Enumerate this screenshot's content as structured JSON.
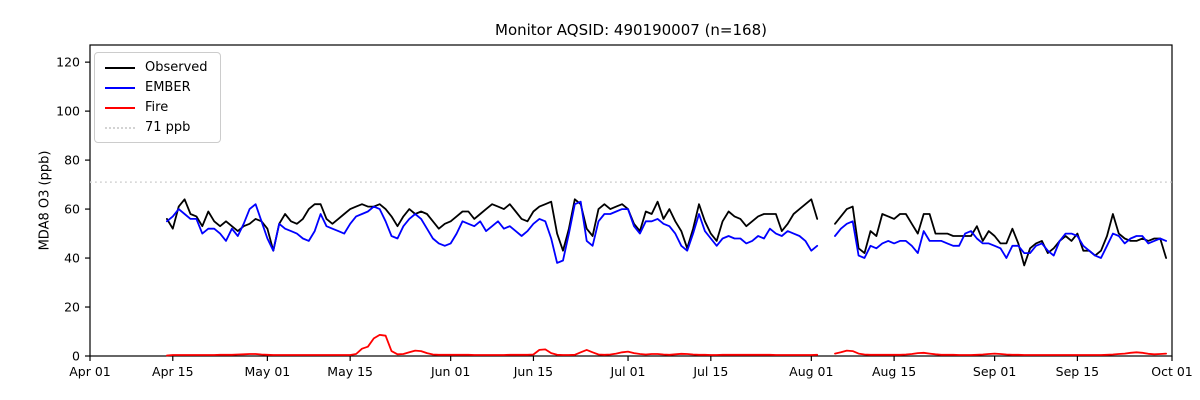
{
  "chart_data": {
    "type": "line",
    "title": "Monitor AQSID: 490190007 (n=168)",
    "xlabel": "",
    "ylabel": "MDA8 O3 (ppb)",
    "n_points": 168,
    "grid": false,
    "legend_position": "upper left",
    "x_axis": {
      "start_label": "Apr 01",
      "end_label": "Oct 01",
      "range_days": 183,
      "ticks": [
        {
          "label": "Apr 01",
          "day": 0
        },
        {
          "label": "Apr 15",
          "day": 14
        },
        {
          "label": "May 01",
          "day": 30
        },
        {
          "label": "May 15",
          "day": 44
        },
        {
          "label": "Jun 01",
          "day": 61
        },
        {
          "label": "Jun 15",
          "day": 75
        },
        {
          "label": "Jul 01",
          "day": 91
        },
        {
          "label": "Jul 15",
          "day": 105
        },
        {
          "label": "Aug 01",
          "day": 122
        },
        {
          "label": "Aug 15",
          "day": 136
        },
        {
          "label": "Sep 01",
          "day": 153
        },
        {
          "label": "Sep 15",
          "day": 167
        },
        {
          "label": "Oct 01",
          "day": 183
        }
      ]
    },
    "y_axis": {
      "min": 0,
      "max": 127,
      "ticks": [
        0,
        20,
        40,
        60,
        80,
        100,
        120
      ]
    },
    "threshold": {
      "label": "71 ppb",
      "value": 71,
      "color": "#d3d3d3",
      "style": "dotted"
    },
    "data_start_date": "Apr 14",
    "data_end_date": "Sep 30",
    "x_start_day": 13,
    "missing_dates": [
      "Aug 03",
      "Aug 04"
    ],
    "series": [
      {
        "name": "Observed",
        "color": "#000000",
        "values": [
          56,
          52,
          61,
          64,
          58,
          57,
          53,
          59,
          55,
          53,
          55,
          53,
          51,
          53,
          54,
          56,
          55,
          52,
          43,
          54,
          58,
          55,
          54,
          56,
          60,
          62,
          62,
          56,
          54,
          56,
          58,
          60,
          61,
          62,
          61,
          61,
          62,
          60,
          57,
          53,
          57,
          60,
          58,
          59,
          58,
          55,
          52,
          54,
          55,
          57,
          59,
          59,
          56,
          58,
          60,
          62,
          61,
          60,
          62,
          59,
          56,
          55,
          59,
          61,
          62,
          63,
          50,
          43,
          52,
          64,
          62,
          52,
          49,
          60,
          62,
          60,
          61,
          62,
          60,
          54,
          51,
          59,
          58,
          63,
          56,
          60,
          55,
          51,
          44,
          52,
          62,
          55,
          50,
          47,
          55,
          59,
          57,
          56,
          53,
          55,
          57,
          58,
          58,
          58,
          51,
          54,
          58,
          60,
          62,
          64,
          56,
          null,
          null,
          54,
          57,
          60,
          61,
          44,
          42,
          51,
          49,
          58,
          57,
          56,
          58,
          58,
          54,
          50,
          58,
          58,
          50,
          50,
          50,
          49,
          49,
          49,
          49,
          53,
          47,
          51,
          49,
          46,
          46,
          52,
          46,
          37,
          44,
          46,
          47,
          42,
          44,
          47,
          49,
          47,
          50,
          43,
          43,
          41,
          43,
          49,
          58,
          50,
          48,
          47,
          47,
          48,
          47,
          48,
          48,
          40
        ]
      },
      {
        "name": "EMBER",
        "color": "#0000ff",
        "values": [
          55,
          57,
          60,
          58,
          56,
          56,
          50,
          52,
          52,
          50,
          47,
          52,
          49,
          54,
          60,
          62,
          55,
          48,
          43,
          54,
          52,
          51,
          50,
          48,
          47,
          51,
          58,
          53,
          52,
          51,
          50,
          54,
          57,
          58,
          59,
          61,
          60,
          55,
          49,
          48,
          53,
          56,
          58,
          56,
          52,
          48,
          46,
          45,
          46,
          50,
          55,
          54,
          53,
          55,
          51,
          53,
          55,
          52,
          53,
          51,
          49,
          51,
          54,
          56,
          55,
          48,
          38,
          39,
          50,
          62,
          63,
          47,
          45,
          55,
          58,
          58,
          59,
          60,
          60,
          53,
          50,
          55,
          55,
          56,
          54,
          53,
          50,
          45,
          43,
          50,
          58,
          51,
          48,
          45,
          48,
          49,
          48,
          48,
          46,
          47,
          49,
          48,
          52,
          50,
          49,
          51,
          50,
          49,
          47,
          43,
          45,
          null,
          null,
          49,
          52,
          54,
          55,
          41,
          40,
          45,
          44,
          46,
          47,
          46,
          47,
          47,
          45,
          42,
          51,
          47,
          47,
          47,
          46,
          45,
          45,
          50,
          51,
          48,
          46,
          46,
          45,
          44,
          40,
          45,
          45,
          42,
          42,
          45,
          46,
          43,
          41,
          47,
          50,
          50,
          49,
          45,
          43,
          41,
          40,
          45,
          50,
          49,
          46,
          48,
          49,
          49,
          46,
          47,
          48,
          47
        ]
      },
      {
        "name": "Fire",
        "color": "#ff0000",
        "values": [
          0.2,
          0.4,
          0.4,
          0.4,
          0.4,
          0.4,
          0.4,
          0.4,
          0.4,
          0.5,
          0.5,
          0.5,
          0.6,
          0.7,
          0.8,
          0.8,
          0.6,
          0.5,
          0.4,
          0.4,
          0.4,
          0.4,
          0.4,
          0.4,
          0.4,
          0.4,
          0.4,
          0.4,
          0.4,
          0.4,
          0.4,
          0.4,
          0.8,
          3.0,
          3.8,
          7.2,
          8.6,
          8.3,
          2.0,
          0.7,
          0.8,
          1.5,
          2.2,
          2.0,
          1.2,
          0.6,
          0.5,
          0.5,
          0.5,
          0.5,
          0.5,
          0.5,
          0.4,
          0.4,
          0.4,
          0.4,
          0.4,
          0.4,
          0.5,
          0.5,
          0.5,
          0.5,
          0.6,
          2.5,
          2.7,
          1.2,
          0.5,
          0.4,
          0.4,
          0.5,
          1.5,
          2.5,
          1.5,
          0.6,
          0.5,
          0.6,
          1.0,
          1.5,
          1.8,
          1.2,
          0.8,
          0.6,
          0.8,
          0.8,
          0.6,
          0.5,
          0.7,
          0.9,
          0.8,
          0.6,
          0.5,
          0.5,
          0.4,
          0.4,
          0.5,
          0.5,
          0.5,
          0.5,
          0.5,
          0.5,
          0.5,
          0.5,
          0.5,
          0.4,
          0.4,
          0.4,
          0.4,
          0.4,
          0.4,
          0.4,
          0.5,
          null,
          null,
          1.0,
          1.5,
          2.2,
          2.0,
          1.0,
          0.6,
          0.5,
          0.5,
          0.5,
          0.5,
          0.5,
          0.5,
          0.6,
          0.8,
          1.2,
          1.3,
          1.0,
          0.7,
          0.5,
          0.5,
          0.5,
          0.4,
          0.4,
          0.4,
          0.5,
          0.6,
          0.8,
          1.0,
          0.8,
          0.6,
          0.5,
          0.5,
          0.4,
          0.4,
          0.4,
          0.4,
          0.4,
          0.4,
          0.4,
          0.4,
          0.4,
          0.4,
          0.4,
          0.4,
          0.4,
          0.4,
          0.5,
          0.6,
          0.8,
          1.0,
          1.3,
          1.5,
          1.3,
          0.9,
          0.7,
          0.8,
          1.0
        ]
      }
    ]
  }
}
